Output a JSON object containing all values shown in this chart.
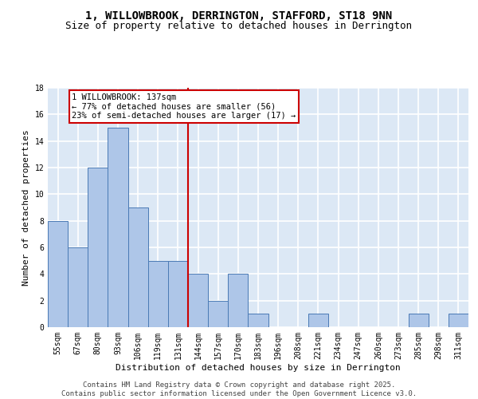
{
  "title": "1, WILLOWBROOK, DERRINGTON, STAFFORD, ST18 9NN",
  "subtitle": "Size of property relative to detached houses in Derrington",
  "xlabel": "Distribution of detached houses by size in Derrington",
  "ylabel": "Number of detached properties",
  "bar_labels": [
    "55sqm",
    "67sqm",
    "80sqm",
    "93sqm",
    "106sqm",
    "119sqm",
    "131sqm",
    "144sqm",
    "157sqm",
    "170sqm",
    "183sqm",
    "196sqm",
    "208sqm",
    "221sqm",
    "234sqm",
    "247sqm",
    "260sqm",
    "273sqm",
    "285sqm",
    "298sqm",
    "311sqm"
  ],
  "bar_values": [
    8,
    6,
    12,
    15,
    9,
    5,
    5,
    4,
    2,
    4,
    1,
    0,
    0,
    1,
    0,
    0,
    0,
    0,
    1,
    0,
    1
  ],
  "bar_color": "#aec6e8",
  "bar_edge_color": "#4a7ab5",
  "vline_pos": 6.5,
  "vline_color": "#cc0000",
  "annotation_text": "1 WILLOWBROOK: 137sqm\n← 77% of detached houses are smaller (56)\n23% of semi-detached houses are larger (17) →",
  "annotation_box_color": "#cc0000",
  "ylim": [
    0,
    18
  ],
  "yticks": [
    0,
    2,
    4,
    6,
    8,
    10,
    12,
    14,
    16,
    18
  ],
  "background_color": "#dce8f5",
  "grid_color": "#ffffff",
  "footer": "Contains HM Land Registry data © Crown copyright and database right 2025.\nContains public sector information licensed under the Open Government Licence v3.0.",
  "title_fontsize": 10,
  "subtitle_fontsize": 9,
  "xlabel_fontsize": 8,
  "ylabel_fontsize": 8,
  "tick_fontsize": 7,
  "annotation_fontsize": 7.5,
  "footer_fontsize": 6.5
}
